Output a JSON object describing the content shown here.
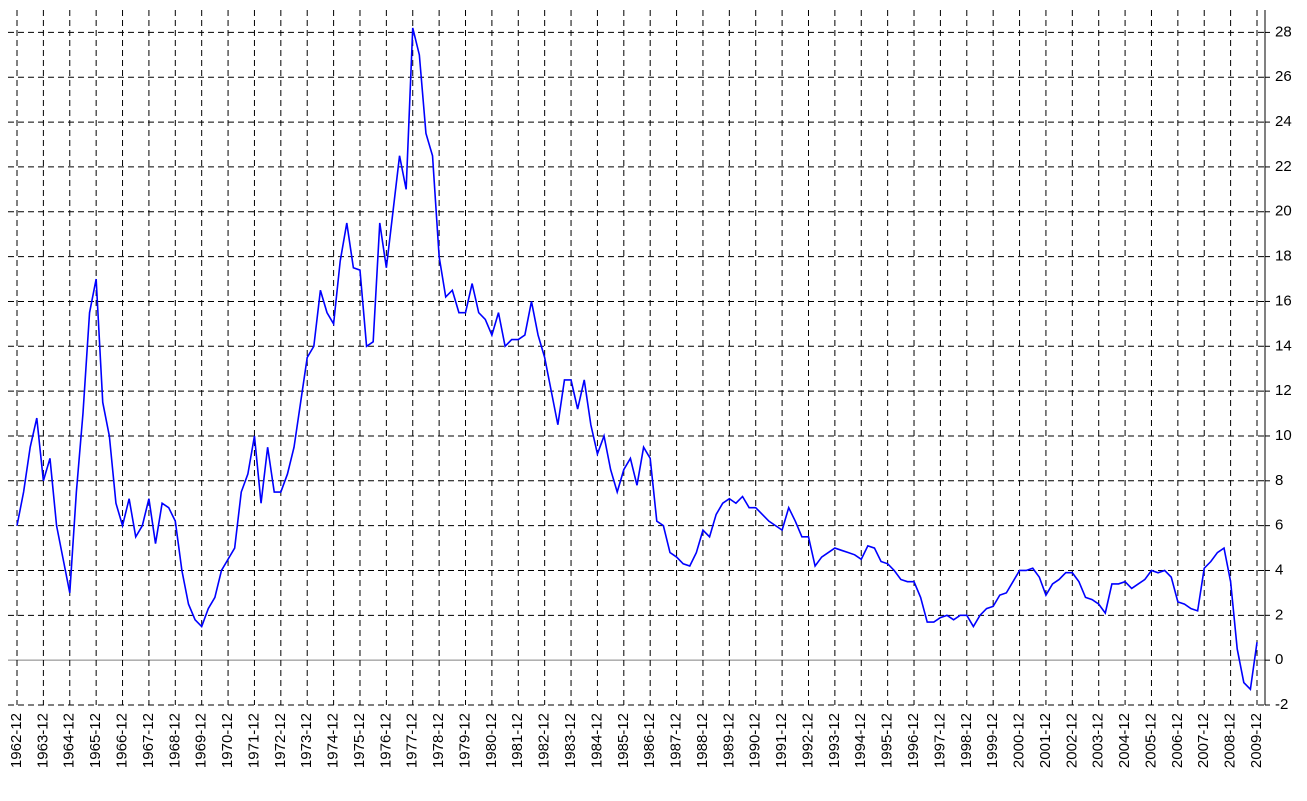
{
  "chart_data": {
    "type": "line",
    "categories": [
      "1962-12",
      null,
      null,
      null,
      "1963-12",
      null,
      null,
      null,
      "1964-12",
      null,
      null,
      null,
      "1965-12",
      null,
      null,
      null,
      "1966-12",
      null,
      null,
      null,
      "1967-12",
      null,
      null,
      null,
      "1968-12",
      null,
      null,
      null,
      "1969-12",
      null,
      null,
      null,
      "1970-12",
      null,
      null,
      null,
      "1971-12",
      null,
      null,
      null,
      "1972-12",
      null,
      null,
      null,
      "1973-12",
      null,
      null,
      null,
      "1974-12",
      null,
      null,
      null,
      "1975-12",
      null,
      null,
      null,
      "1976-12",
      null,
      null,
      null,
      "1977-12",
      null,
      null,
      null,
      "1978-12",
      null,
      null,
      null,
      "1979-12",
      null,
      null,
      null,
      "1980-12",
      null,
      null,
      null,
      "1981-12",
      null,
      null,
      null,
      "1982-12",
      null,
      null,
      null,
      "1983-12",
      null,
      null,
      null,
      "1984-12",
      null,
      null,
      null,
      "1985-12",
      null,
      null,
      null,
      "1986-12",
      null,
      null,
      null,
      "1987-12",
      null,
      null,
      null,
      "1988-12",
      null,
      null,
      null,
      "1989-12",
      null,
      null,
      null,
      "1990-12",
      null,
      null,
      null,
      "1991-12",
      null,
      null,
      null,
      "1992-12",
      null,
      null,
      null,
      "1993-12",
      null,
      null,
      null,
      "1994-12",
      null,
      null,
      null,
      "1995-12",
      null,
      null,
      null,
      "1996-12",
      null,
      null,
      null,
      "1997-12",
      null,
      null,
      null,
      "1998-12",
      null,
      null,
      null,
      "1999-12",
      null,
      null,
      null,
      "2000-12",
      null,
      null,
      null,
      "2001-12",
      null,
      null,
      null,
      "2002-12",
      null,
      null,
      null,
      "2003-12",
      null,
      null,
      null,
      "2004-12",
      null,
      null,
      null,
      "2005-12",
      null,
      null,
      null,
      "2006-12",
      null,
      null,
      null,
      "2007-12",
      null,
      null,
      null,
      "2008-12",
      null,
      null,
      null,
      "2009-12"
    ],
    "values": [
      6,
      7.5,
      9.5,
      10.8,
      8,
      9,
      6,
      4.5,
      3,
      7.5,
      11,
      15.5,
      17,
      11.5,
      10,
      7,
      6,
      7.2,
      5.5,
      6,
      7.2,
      5.2,
      7,
      6.8,
      6.2,
      4,
      2.5,
      1.8,
      1.5,
      2.3,
      2.8,
      4,
      4.5,
      5,
      7.5,
      8.3,
      10,
      7,
      9.5,
      7.5,
      7.5,
      8.3,
      9.5,
      11.5,
      13.5,
      14,
      16.5,
      15.5,
      15,
      17.8,
      19.5,
      17.5,
      17.4,
      14,
      14.2,
      19.5,
      17.5,
      20,
      22.5,
      21,
      28.2,
      27,
      23.5,
      22.5,
      18,
      16.2,
      16.5,
      15.5,
      15.5,
      16.8,
      15.5,
      15.2,
      14.5,
      15.5,
      14,
      14.3,
      14.3,
      14.5,
      16,
      14.5,
      13.5,
      12,
      10.5,
      12.5,
      12.5,
      11.2,
      12.5,
      10.5,
      9.2,
      10,
      8.5,
      7.5,
      8.5,
      9,
      7.8,
      9.5,
      9,
      6.2,
      6,
      4.8,
      4.6,
      4.3,
      4.2,
      4.8,
      5.8,
      5.5,
      6.5,
      7,
      7.2,
      7,
      7.3,
      6.8,
      6.8,
      6.5,
      6.2,
      6,
      5.8,
      6.8,
      6.2,
      5.5,
      5.5,
      4.2,
      4.6,
      4.8,
      5,
      4.9,
      4.8,
      4.7,
      4.5,
      5.1,
      5,
      4.4,
      4.3,
      4,
      3.6,
      3.5,
      3.5,
      2.8,
      1.7,
      1.7,
      1.9,
      2,
      1.8,
      2,
      2,
      1.5,
      2,
      2.3,
      2.4,
      2.9,
      3,
      3.5,
      4,
      4,
      4.1,
      3.7,
      2.9,
      3.4,
      3.6,
      3.9,
      3.9,
      3.5,
      2.8,
      2.7,
      2.5,
      2.1,
      3.4,
      3.4,
      3.5,
      3.2,
      3.4,
      3.6,
      4,
      3.9,
      4,
      3.7,
      2.6,
      2.5,
      2.3,
      2.2,
      4.1,
      4.4,
      4.8,
      5,
      3.5,
      0.5,
      -1,
      -1.3,
      0.8
    ],
    "color": "#0000ff",
    "ylim": [
      -2,
      29
    ],
    "yticks": [
      -2,
      0,
      2,
      4,
      6,
      8,
      10,
      12,
      14,
      16,
      18,
      20,
      22,
      24,
      26,
      28
    ],
    "grid": true
  }
}
